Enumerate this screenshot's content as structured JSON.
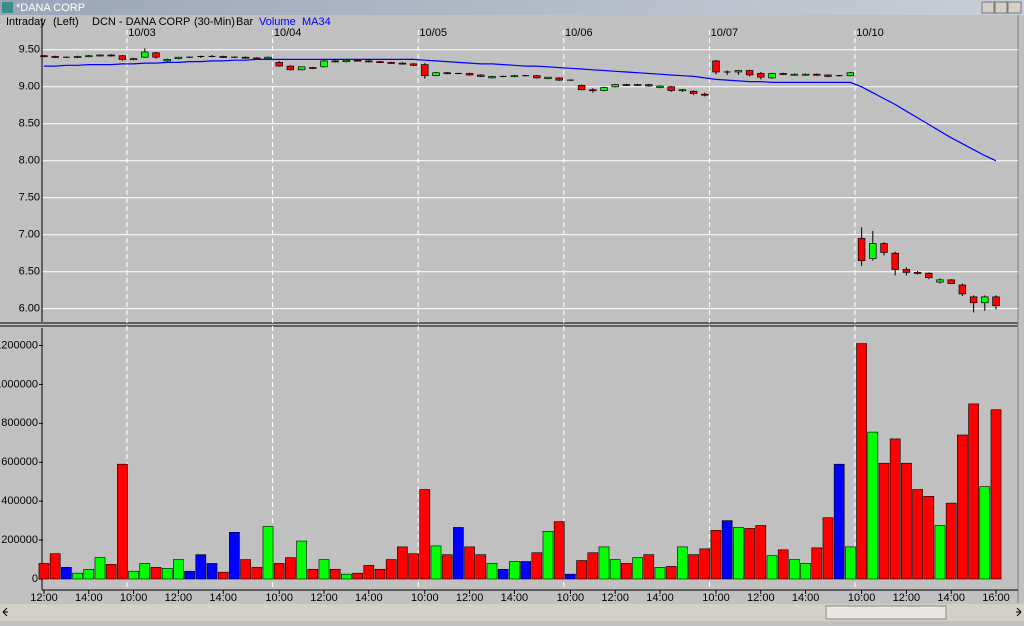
{
  "window_title": "*DANA CORP",
  "chart_data": {
    "type": "candlestick",
    "header": {
      "mode": "Intraday",
      "axis_side": "(Left)",
      "symbol": "DCN - DANA CORP",
      "interval": "(30-Min)",
      "style": "Bar"
    },
    "categories": [
      "12:00",
      null,
      null,
      null,
      "14:00",
      null,
      null,
      null,
      "10:00",
      null,
      null,
      null,
      "12:00",
      null,
      null,
      null,
      "14:00",
      null,
      null,
      null,
      null,
      "10:00",
      null,
      null,
      null,
      "12:00",
      null,
      null,
      null,
      "14:00",
      null,
      null,
      null,
      null,
      "10:00",
      null,
      null,
      null,
      "12:00",
      null,
      null,
      null,
      "14:00",
      null,
      null,
      null,
      null,
      "10:00",
      null,
      null,
      null,
      "12:00",
      null,
      null,
      null,
      "14:00",
      null,
      null,
      null,
      null,
      "10:00",
      null,
      null,
      null,
      "12:00",
      null,
      null,
      null,
      "14:00",
      null,
      null,
      null,
      null,
      "10:00",
      null,
      null,
      null,
      "12:00",
      null,
      null,
      null,
      "14:00",
      null,
      null,
      null,
      "16:00"
    ],
    "dates": [
      null,
      null,
      null,
      null,
      null,
      null,
      null,
      null,
      "10/03",
      null,
      null,
      null,
      null,
      null,
      null,
      null,
      null,
      null,
      null,
      null,
      null,
      "10/04",
      null,
      null,
      null,
      null,
      null,
      null,
      null,
      null,
      null,
      null,
      null,
      null,
      "10/05",
      null,
      null,
      null,
      null,
      null,
      null,
      null,
      null,
      null,
      null,
      null,
      null,
      "10/06",
      null,
      null,
      null,
      null,
      null,
      null,
      null,
      null,
      null,
      null,
      null,
      null,
      "10/07",
      null,
      null,
      null,
      null,
      null,
      null,
      null,
      null,
      null,
      null,
      null,
      null,
      "10/10",
      null,
      null,
      null,
      null,
      null,
      null,
      null,
      null,
      null,
      null,
      null,
      null
    ],
    "open": [
      9.42,
      9.41,
      9.4,
      9.4,
      9.41,
      9.42,
      9.43,
      9.42,
      9.37,
      9.4,
      9.46,
      9.35,
      9.38,
      9.4,
      9.41,
      9.41,
      9.41,
      9.4,
      9.4,
      9.39,
      9.38,
      9.33,
      9.28,
      9.23,
      9.26,
      9.27,
      9.35,
      9.34,
      9.36,
      9.35,
      9.34,
      9.33,
      9.32,
      9.31,
      9.3,
      9.15,
      9.19,
      9.18,
      9.18,
      9.16,
      9.12,
      9.14,
      9.14,
      9.15,
      9.15,
      9.11,
      9.12,
      9.09,
      9.02,
      8.96,
      8.95,
      9.0,
      9.03,
      9.02,
      9.03,
      8.99,
      9.0,
      8.95,
      8.94,
      8.9,
      9.35,
      9.2,
      9.2,
      9.22,
      9.18,
      9.12,
      9.18,
      9.16,
      9.16,
      9.17,
      9.16,
      9.15,
      9.15,
      6.95,
      6.68,
      6.88,
      6.75,
      6.53,
      6.49,
      6.48,
      6.36,
      6.39,
      6.32,
      6.16,
      6.08,
      6.16
    ],
    "high": [
      9.43,
      9.42,
      9.41,
      9.42,
      9.43,
      9.44,
      9.44,
      9.43,
      9.39,
      9.52,
      9.47,
      9.38,
      9.4,
      9.41,
      9.42,
      9.43,
      9.42,
      9.41,
      9.41,
      9.4,
      9.41,
      9.35,
      9.29,
      9.27,
      9.27,
      9.36,
      9.36,
      9.36,
      9.37,
      9.36,
      9.35,
      9.34,
      9.33,
      9.32,
      9.32,
      9.2,
      9.2,
      9.19,
      9.19,
      9.17,
      9.15,
      9.15,
      9.16,
      9.16,
      9.16,
      9.13,
      9.13,
      9.1,
      9.03,
      8.98,
      9.0,
      9.04,
      9.04,
      9.04,
      9.04,
      9.02,
      9.01,
      8.97,
      8.95,
      8.92,
      9.36,
      9.22,
      9.22,
      9.23,
      9.2,
      9.19,
      9.19,
      9.18,
      9.18,
      9.18,
      9.17,
      9.16,
      9.2,
      7.1,
      7.05,
      6.9,
      6.77,
      6.56,
      6.51,
      6.49,
      6.41,
      6.4,
      6.34,
      6.18,
      6.18,
      6.18
    ],
    "low": [
      9.4,
      9.39,
      9.39,
      9.39,
      9.4,
      9.41,
      9.41,
      9.35,
      9.36,
      9.39,
      9.38,
      9.34,
      9.37,
      9.39,
      9.39,
      9.4,
      9.39,
      9.39,
      9.38,
      9.37,
      9.37,
      9.27,
      9.22,
      9.22,
      9.24,
      9.26,
      9.33,
      9.33,
      9.34,
      9.33,
      9.32,
      9.31,
      9.3,
      9.28,
      9.11,
      9.14,
      9.17,
      9.17,
      9.15,
      9.13,
      9.11,
      9.13,
      9.13,
      9.14,
      9.11,
      9.1,
      9.08,
      9.08,
      8.95,
      8.92,
      8.94,
      8.99,
      9.01,
      9.01,
      9.0,
      8.98,
      8.93,
      8.93,
      8.89,
      8.87,
      9.17,
      9.16,
      9.16,
      9.14,
      9.1,
      9.11,
      9.16,
      9.15,
      9.15,
      9.15,
      9.13,
      9.14,
      9.14,
      6.58,
      6.65,
      6.72,
      6.45,
      6.45,
      6.46,
      6.4,
      6.34,
      6.33,
      6.17,
      5.95,
      5.97,
      5.99
    ],
    "close": [
      9.41,
      9.4,
      9.4,
      9.41,
      9.42,
      9.43,
      9.42,
      9.37,
      9.38,
      9.47,
      9.4,
      9.37,
      9.4,
      9.4,
      9.41,
      9.41,
      9.4,
      9.4,
      9.39,
      9.38,
      9.4,
      9.28,
      9.23,
      9.27,
      9.25,
      9.35,
      9.34,
      9.36,
      9.35,
      9.34,
      9.33,
      9.32,
      9.31,
      9.29,
      9.15,
      9.19,
      9.18,
      9.18,
      9.16,
      9.14,
      9.14,
      9.14,
      9.15,
      9.15,
      9.12,
      9.13,
      9.09,
      9.09,
      8.96,
      8.95,
      8.99,
      9.03,
      9.02,
      9.03,
      9.01,
      9.01,
      8.95,
      8.96,
      8.91,
      8.89,
      9.2,
      9.2,
      9.22,
      9.16,
      9.13,
      9.18,
      9.17,
      9.17,
      9.17,
      9.16,
      9.14,
      9.15,
      9.19,
      6.65,
      6.88,
      6.76,
      6.53,
      6.49,
      6.48,
      6.42,
      6.39,
      6.34,
      6.2,
      6.08,
      6.16,
      6.04
    ],
    "volume": [
      80000,
      130000,
      60000,
      30000,
      50000,
      110000,
      75000,
      590000,
      40000,
      80000,
      60000,
      55000,
      100000,
      40000,
      125000,
      80000,
      35000,
      240000,
      100000,
      60000,
      270000,
      80000,
      110000,
      195000,
      50000,
      100000,
      50000,
      25000,
      30000,
      70000,
      50000,
      100000,
      165000,
      130000,
      460000,
      170000,
      125000,
      265000,
      165000,
      125000,
      80000,
      50000,
      90000,
      90000,
      135000,
      245000,
      295000,
      25000,
      95000,
      135000,
      165000,
      100000,
      80000,
      110000,
      125000,
      60000,
      65000,
      165000,
      125000,
      155000,
      250000,
      300000,
      265000,
      260000,
      275000,
      120000,
      150000,
      100000,
      80000,
      160000,
      315000,
      590000,
      165000,
      1210000,
      755000,
      595000,
      720000,
      595000,
      460000,
      425000,
      275000,
      390000,
      740000,
      900000,
      475000,
      870000
    ],
    "volume_name": "Volume",
    "up_color": "#00ff00",
    "down_color": "#ff0000",
    "flat_color": "#0000ff",
    "ma": {
      "name": "MA34",
      "color": "#0000ff",
      "values": [
        9.28,
        9.28,
        9.29,
        9.29,
        9.3,
        9.3,
        9.3,
        9.31,
        9.31,
        9.32,
        9.32,
        9.33,
        9.33,
        9.34,
        9.34,
        9.35,
        9.35,
        9.36,
        9.36,
        9.37,
        9.37,
        9.37,
        9.37,
        9.37,
        9.37,
        9.37,
        9.37,
        9.37,
        9.37,
        9.37,
        9.37,
        9.37,
        9.37,
        9.37,
        9.36,
        9.35,
        9.34,
        9.33,
        9.32,
        9.31,
        9.31,
        9.3,
        9.29,
        9.28,
        9.28,
        9.27,
        9.26,
        9.25,
        9.24,
        9.23,
        9.22,
        9.21,
        9.2,
        9.19,
        9.18,
        9.17,
        9.16,
        9.15,
        9.14,
        9.12,
        9.1,
        9.09,
        9.08,
        9.07,
        9.07,
        9.06,
        9.06,
        9.06,
        9.06,
        9.06,
        9.06,
        9.06,
        9.06,
        9.0,
        8.92,
        8.84,
        8.76,
        8.67,
        8.58,
        8.49,
        8.4,
        8.31,
        8.23,
        8.15,
        8.07,
        8.0
      ]
    },
    "ylim": [
      5.82,
      9.93
    ],
    "yticks": [
      {
        "value": 6,
        "label": "6.00"
      },
      {
        "value": 6.5,
        "label": "6.50"
      },
      {
        "value": 7,
        "label": "7.00"
      },
      {
        "value": 7.5,
        "label": "7.50"
      },
      {
        "value": 8,
        "label": "8.00"
      },
      {
        "value": 8.5,
        "label": "8.50"
      },
      {
        "value": 9,
        "label": "9.00"
      },
      {
        "value": 9.5,
        "label": "9.50"
      }
    ],
    "volume_ylim": [
      0,
      1290000
    ],
    "volume_yticks": [
      0,
      200000,
      400000,
      600000,
      800000,
      1000000,
      1200000
    ],
    "grid": true
  }
}
